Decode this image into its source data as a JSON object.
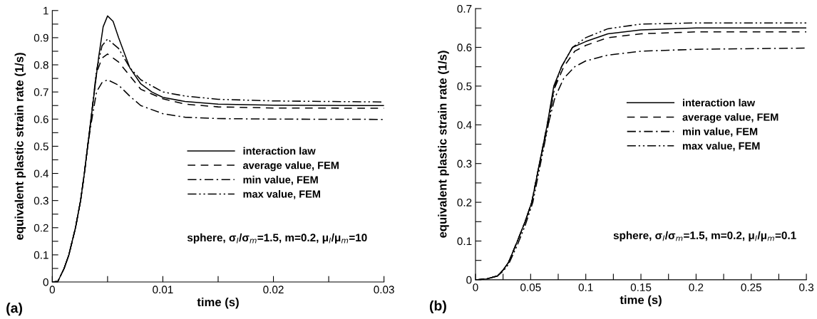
{
  "chart_data": [
    {
      "type": "line",
      "xlabel": "time (s)",
      "ylabel": "equivalent plastic strain rate (1/s)",
      "annotations": [
        "(a)",
        "sphere, σ$_{I}$/σ$_{m}$=1.5, m=0.2, μ$_{I}$/μ$_{m}$=10"
      ],
      "xlim": [
        0,
        0.03
      ],
      "ylim": [
        0,
        1
      ],
      "xticks": [
        0,
        {
          "value": 0.005,
          "label": null
        },
        0.01,
        {
          "value": 0.015,
          "label": null
        },
        0.02,
        {
          "value": 0.025,
          "label": null
        },
        0.03
      ],
      "yticks": [
        0,
        {
          "value": 0.05,
          "label": null
        },
        0.1,
        {
          "value": 0.15,
          "label": null
        },
        0.2,
        {
          "value": 0.25,
          "label": null
        },
        0.3,
        {
          "value": 0.35,
          "label": null
        },
        0.4,
        {
          "value": 0.45,
          "label": null
        },
        0.5,
        {
          "value": 0.55,
          "label": null
        },
        0.6,
        {
          "value": 0.65,
          "label": null
        },
        0.7,
        {
          "value": 0.75,
          "label": null
        },
        0.8,
        {
          "value": 0.85,
          "label": null
        },
        0.9,
        {
          "value": 0.95,
          "label": null
        },
        1
      ],
      "legend": "center right",
      "grid": false,
      "series": [
        {
          "name": "interaction law",
          "color": "#000000",
          "line_style": "solid",
          "x": [
            0,
            0.0005,
            0.00107,
            0.0015,
            0.0021,
            0.00256,
            0.0029,
            0.0032,
            0.0035,
            0.0038,
            0.0042,
            0.0046,
            0.005,
            0.0055,
            0.006,
            0.007,
            0.008,
            0.009,
            0.01,
            0.012,
            0.015,
            0.02,
            0.03
          ],
          "values": [
            0,
            0.002,
            0.05,
            0.1,
            0.2,
            0.3,
            0.4,
            0.5,
            0.6,
            0.7,
            0.83,
            0.94,
            0.98,
            0.96,
            0.9,
            0.79,
            0.73,
            0.7,
            0.68,
            0.665,
            0.655,
            0.651,
            0.65
          ]
        },
        {
          "name": "average value, FEM",
          "color": "#000000",
          "line_style": "dashed",
          "x": [
            0,
            0.0005,
            0.00107,
            0.0015,
            0.0021,
            0.00256,
            0.0029,
            0.0032,
            0.0035,
            0.004,
            0.0045,
            0.005,
            0.006,
            0.007,
            0.008,
            0.01,
            0.012,
            0.015,
            0.02,
            0.03
          ],
          "values": [
            0,
            0.002,
            0.05,
            0.1,
            0.2,
            0.3,
            0.4,
            0.5,
            0.6,
            0.77,
            0.825,
            0.84,
            0.81,
            0.76,
            0.71,
            0.675,
            0.655,
            0.645,
            0.641,
            0.64
          ]
        },
        {
          "name": "min value, FEM",
          "color": "#000000",
          "line_style": "dashdot",
          "x": [
            0,
            0.0005,
            0.00107,
            0.0015,
            0.0021,
            0.00256,
            0.0029,
            0.0032,
            0.0035,
            0.004,
            0.0045,
            0.005,
            0.006,
            0.007,
            0.008,
            0.01,
            0.012,
            0.015,
            0.02,
            0.03
          ],
          "values": [
            0,
            0.002,
            0.05,
            0.1,
            0.2,
            0.3,
            0.4,
            0.5,
            0.58,
            0.7,
            0.735,
            0.745,
            0.725,
            0.685,
            0.65,
            0.62,
            0.607,
            0.602,
            0.6,
            0.599
          ]
        },
        {
          "name": "max value, FEM",
          "color": "#000000",
          "line_style": "dashdotdot",
          "x": [
            0,
            0.0005,
            0.00107,
            0.0015,
            0.0021,
            0.00256,
            0.0029,
            0.0032,
            0.0035,
            0.004,
            0.0045,
            0.005,
            0.006,
            0.007,
            0.008,
            0.01,
            0.012,
            0.015,
            0.02,
            0.03
          ],
          "values": [
            0,
            0.002,
            0.05,
            0.1,
            0.2,
            0.3,
            0.4,
            0.5,
            0.6,
            0.78,
            0.87,
            0.895,
            0.86,
            0.79,
            0.745,
            0.7,
            0.685,
            0.673,
            0.667,
            0.663
          ]
        }
      ]
    },
    {
      "type": "line",
      "xlabel": "time (s)",
      "ylabel": "equivalent plastic strain rate (1/s)",
      "annotations": [
        "(b)",
        "sphere, σ$_{I}$/σ$_{m}$=1.5, m=0.2, μ$_{I}$/μ$_{m}$=0.1"
      ],
      "xlim": [
        0,
        0.3
      ],
      "ylim": [
        0,
        0.7
      ],
      "xticks": [
        0,
        {
          "value": 0.025,
          "label": null
        },
        0.05,
        {
          "value": 0.075,
          "label": null
        },
        0.1,
        {
          "value": 0.125,
          "label": null
        },
        0.15,
        {
          "value": 0.175,
          "label": null
        },
        0.2,
        {
          "value": 0.225,
          "label": null
        },
        0.25,
        {
          "value": 0.275,
          "label": null
        },
        0.3
      ],
      "yticks": [
        0,
        {
          "value": 0.05,
          "label": null
        },
        0.1,
        {
          "value": 0.15,
          "label": null
        },
        0.2,
        {
          "value": 0.25,
          "label": null
        },
        0.3,
        {
          "value": 0.35,
          "label": null
        },
        0.4,
        {
          "value": 0.45,
          "label": null
        },
        0.5,
        {
          "value": 0.55,
          "label": null
        },
        0.6,
        {
          "value": 0.65,
          "label": null
        },
        0.7
      ],
      "legend": "center right",
      "grid": false,
      "series": [
        {
          "name": "interaction law",
          "color": "#000000",
          "line_style": "solid",
          "x": [
            0,
            0.01,
            0.02,
            0.025,
            0.03,
            0.038,
            0.045,
            0.051,
            0.058,
            0.065,
            0.071,
            0.078,
            0.088,
            0.1,
            0.12,
            0.15,
            0.2,
            0.3
          ],
          "values": [
            0,
            0.002,
            0.01,
            0.025,
            0.045,
            0.1,
            0.15,
            0.2,
            0.3,
            0.4,
            0.5,
            0.55,
            0.6,
            0.615,
            0.635,
            0.645,
            0.65,
            0.65
          ]
        },
        {
          "name": "average value, FEM",
          "color": "#000000",
          "line_style": "dashed",
          "x": [
            0,
            0.01,
            0.02,
            0.025,
            0.03,
            0.038,
            0.045,
            0.051,
            0.058,
            0.065,
            0.071,
            0.08,
            0.09,
            0.1,
            0.12,
            0.15,
            0.2,
            0.3
          ],
          "values": [
            0,
            0.002,
            0.01,
            0.025,
            0.045,
            0.1,
            0.15,
            0.2,
            0.3,
            0.4,
            0.49,
            0.55,
            0.59,
            0.605,
            0.625,
            0.635,
            0.64,
            0.64
          ]
        },
        {
          "name": "min value, FEM",
          "color": "#000000",
          "line_style": "dashdot",
          "x": [
            0,
            0.01,
            0.02,
            0.025,
            0.03,
            0.038,
            0.045,
            0.051,
            0.058,
            0.065,
            0.072,
            0.08,
            0.09,
            0.1,
            0.12,
            0.15,
            0.2,
            0.3
          ],
          "values": [
            0,
            0.002,
            0.01,
            0.025,
            0.045,
            0.1,
            0.15,
            0.2,
            0.3,
            0.39,
            0.47,
            0.52,
            0.55,
            0.565,
            0.58,
            0.59,
            0.595,
            0.598
          ]
        },
        {
          "name": "max value, FEM",
          "color": "#000000",
          "line_style": "dashdotdot",
          "x": [
            0,
            0.01,
            0.02,
            0.025,
            0.03,
            0.038,
            0.045,
            0.052,
            0.059,
            0.066,
            0.072,
            0.078,
            0.088,
            0.1,
            0.12,
            0.15,
            0.2,
            0.3
          ],
          "values": [
            0,
            0.002,
            0.01,
            0.022,
            0.04,
            0.09,
            0.14,
            0.2,
            0.3,
            0.4,
            0.5,
            0.55,
            0.6,
            0.625,
            0.648,
            0.66,
            0.663,
            0.663
          ]
        }
      ]
    }
  ]
}
